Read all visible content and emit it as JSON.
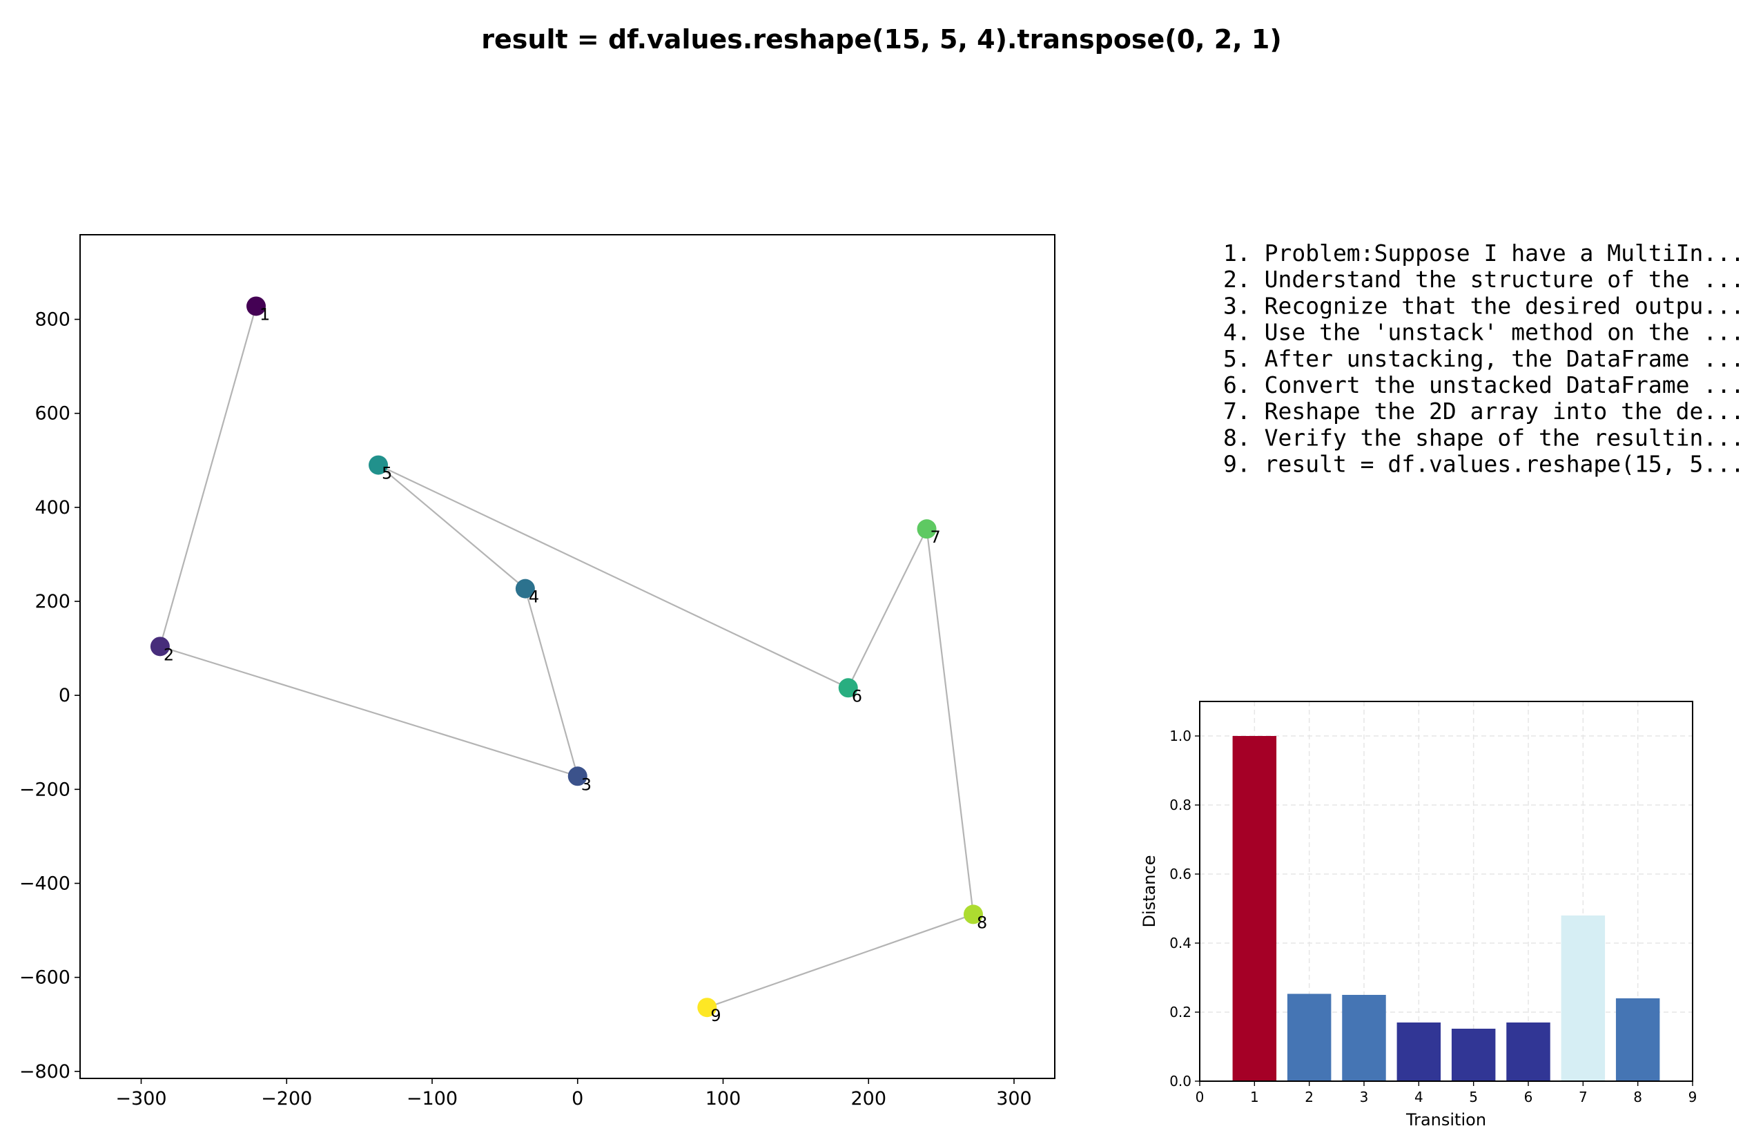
{
  "title": "result = df.values.reshape(15, 5, 4).transpose(0, 2, 1)",
  "steps": [
    "1. Problem:Suppose I have a MultiIn...",
    "2. Understand the structure of the ...",
    "3. Recognize that the desired outpu...",
    "4. Use the 'unstack' method on the ...",
    "5. After unstacking, the DataFrame ...",
    "6. Convert the unstacked DataFrame ...",
    "7. Reshape the 2D array into the de...",
    "8. Verify the shape of the resultin...",
    "9. result = df.values.reshape(15, 5..."
  ],
  "chart_data": [
    {
      "type": "scatter",
      "title": "",
      "xlabel": "",
      "ylabel": "",
      "xlim": [
        -342,
        328
      ],
      "ylim": [
        -815,
        980
      ],
      "xticks": [
        -300,
        -200,
        -100,
        0,
        100,
        200,
        300
      ],
      "yticks": [
        -800,
        -600,
        -400,
        -200,
        0,
        200,
        400,
        600,
        800
      ],
      "connected": true,
      "line_color": "#b4b4b4",
      "colormap": "viridis",
      "points": [
        {
          "label": "1",
          "x": -221,
          "y": 828,
          "color": "#440154"
        },
        {
          "label": "2",
          "x": -287,
          "y": 104,
          "color": "#472d7b"
        },
        {
          "label": "3",
          "x": 0,
          "y": -172,
          "color": "#3b528b"
        },
        {
          "label": "4",
          "x": -36,
          "y": 227,
          "color": "#2c728e"
        },
        {
          "label": "5",
          "x": -137,
          "y": 490,
          "color": "#21918c"
        },
        {
          "label": "6",
          "x": 186,
          "y": 16,
          "color": "#28ae80"
        },
        {
          "label": "7",
          "x": 240,
          "y": 354,
          "color": "#5ec962"
        },
        {
          "label": "8",
          "x": 272,
          "y": -466,
          "color": "#addc30"
        },
        {
          "label": "9",
          "x": 89,
          "y": -664,
          "color": "#fde725"
        }
      ]
    },
    {
      "type": "bar",
      "title": "",
      "xlabel": "Transition",
      "ylabel": "Distance",
      "xlim": [
        0,
        9
      ],
      "ylim": [
        0,
        1.1
      ],
      "xticks": [
        0,
        1,
        2,
        3,
        4,
        5,
        6,
        7,
        8,
        9
      ],
      "yticks": [
        0.0,
        0.2,
        0.4,
        0.6,
        0.8,
        1.0
      ],
      "ytick_labels": [
        "0.0",
        "0.2",
        "0.4",
        "0.6",
        "0.8",
        "1.0"
      ],
      "grid": true,
      "categories": [
        "1",
        "2",
        "3",
        "4",
        "5",
        "6",
        "7",
        "8"
      ],
      "x": [
        1,
        2,
        3,
        4,
        5,
        6,
        7,
        8
      ],
      "values": [
        1.0,
        0.253,
        0.25,
        0.17,
        0.152,
        0.17,
        0.48,
        0.24
      ],
      "colors": [
        "#a50026",
        "#4575b4",
        "#4575b4",
        "#313695",
        "#313695",
        "#313695",
        "#d6eef4",
        "#4575b4"
      ]
    }
  ]
}
